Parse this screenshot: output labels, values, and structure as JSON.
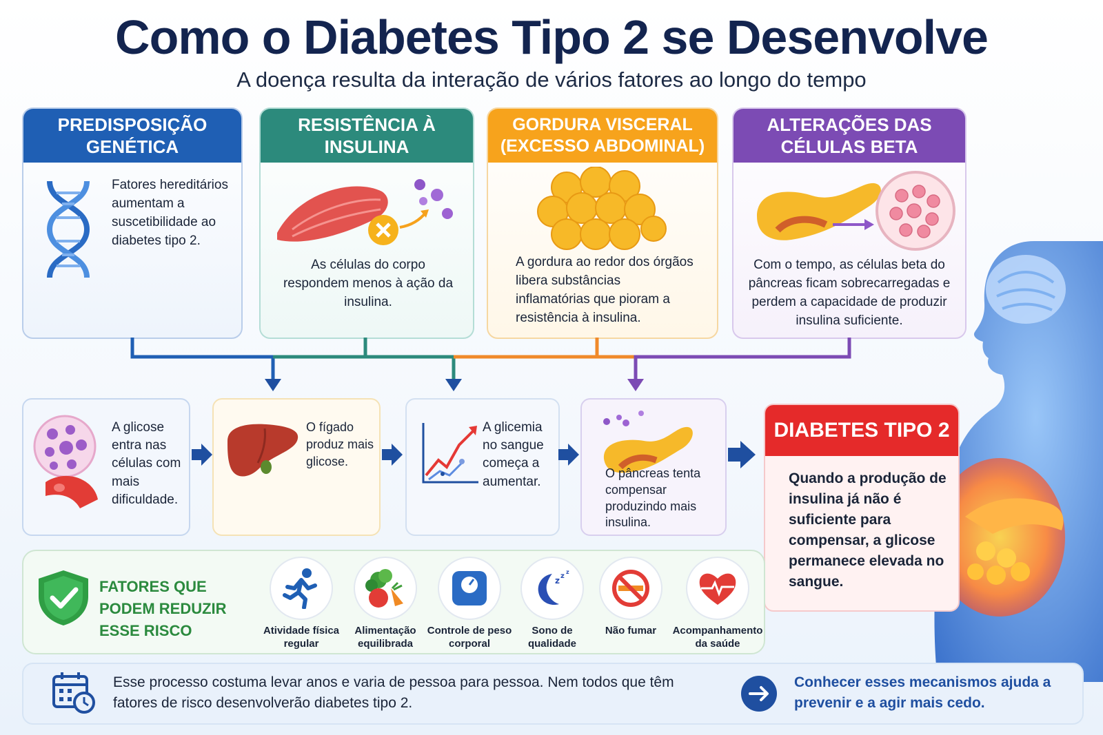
{
  "header": {
    "title": "Como o Diabetes Tipo 2 se Desenvolve",
    "subtitle": "A doença resulta da interação de vários fatores ao longo do tempo"
  },
  "causes": [
    {
      "title": "PREDISPOSIÇÃO GENÉTICA",
      "text": "Fatores hereditários aumentam a suscetibilidade ao diabetes tipo 2.",
      "icon": "dna-icon",
      "color": "#1f5fb4"
    },
    {
      "title": "RESISTÊNCIA À INSULINA",
      "text": "As células do corpo respondem menos à ação da insulina.",
      "icon": "muscle-icon",
      "color": "#2c8a7c"
    },
    {
      "title": "GORDURA VISCERAL (EXCESSO ABDOMINAL)",
      "text": "A gordura ao redor dos órgãos libera substâncias inflamatórias que pioram a resistência à insulina.",
      "icon": "fat-cells-icon",
      "color": "#f7a31c"
    },
    {
      "title": "ALTERAÇÕES DAS CÉLULAS BETA",
      "text": "Com o tempo, as células beta do pâncreas ficam sobrecarregadas e perdem a capacidade de produzir insulina suficiente.",
      "icon": "pancreas-icon",
      "color": "#7c4bb4"
    }
  ],
  "flow": [
    {
      "text": "A glicose entra nas células com mais dificuldade.",
      "icon": "cell-icon"
    },
    {
      "text": "O fígado produz mais glicose.",
      "icon": "liver-icon"
    },
    {
      "text": "A glicemia no sangue começa a aumentar.",
      "icon": "rising-chart-icon"
    },
    {
      "text": "O pâncreas tenta compensar produzindo mais insulina.",
      "icon": "pancreas-icon"
    }
  ],
  "outcome": {
    "title": "DIABETES TIPO 2",
    "text": "Quando a produção de insulina já não é suficiente para compensar, a glicose permanece elevada no sangue.",
    "color": "#e52a2a"
  },
  "risk": {
    "title": "FATORES QUE PODEM REDUZIR ESSE RISCO",
    "factors": [
      {
        "label": "Atividade física regular",
        "icon": "running-icon"
      },
      {
        "label": "Alimentação equilibrada",
        "icon": "vegetables-icon"
      },
      {
        "label": "Controle de peso corporal",
        "icon": "scale-icon"
      },
      {
        "label": "Sono de qualidade",
        "icon": "moon-icon"
      },
      {
        "label": "Não fumar",
        "icon": "no-smoking-icon"
      },
      {
        "label": "Acompanhamento da saúde",
        "icon": "heart-icon"
      }
    ]
  },
  "footer": {
    "note": "Esse processo costuma levar anos e varia de pessoa para pessoa. Nem todos que têm fatores de risco desenvolverão diabetes tipo 2.",
    "cta": "Conhecer esses mecanismos ajuda a prevenir e a agir mais cedo."
  }
}
